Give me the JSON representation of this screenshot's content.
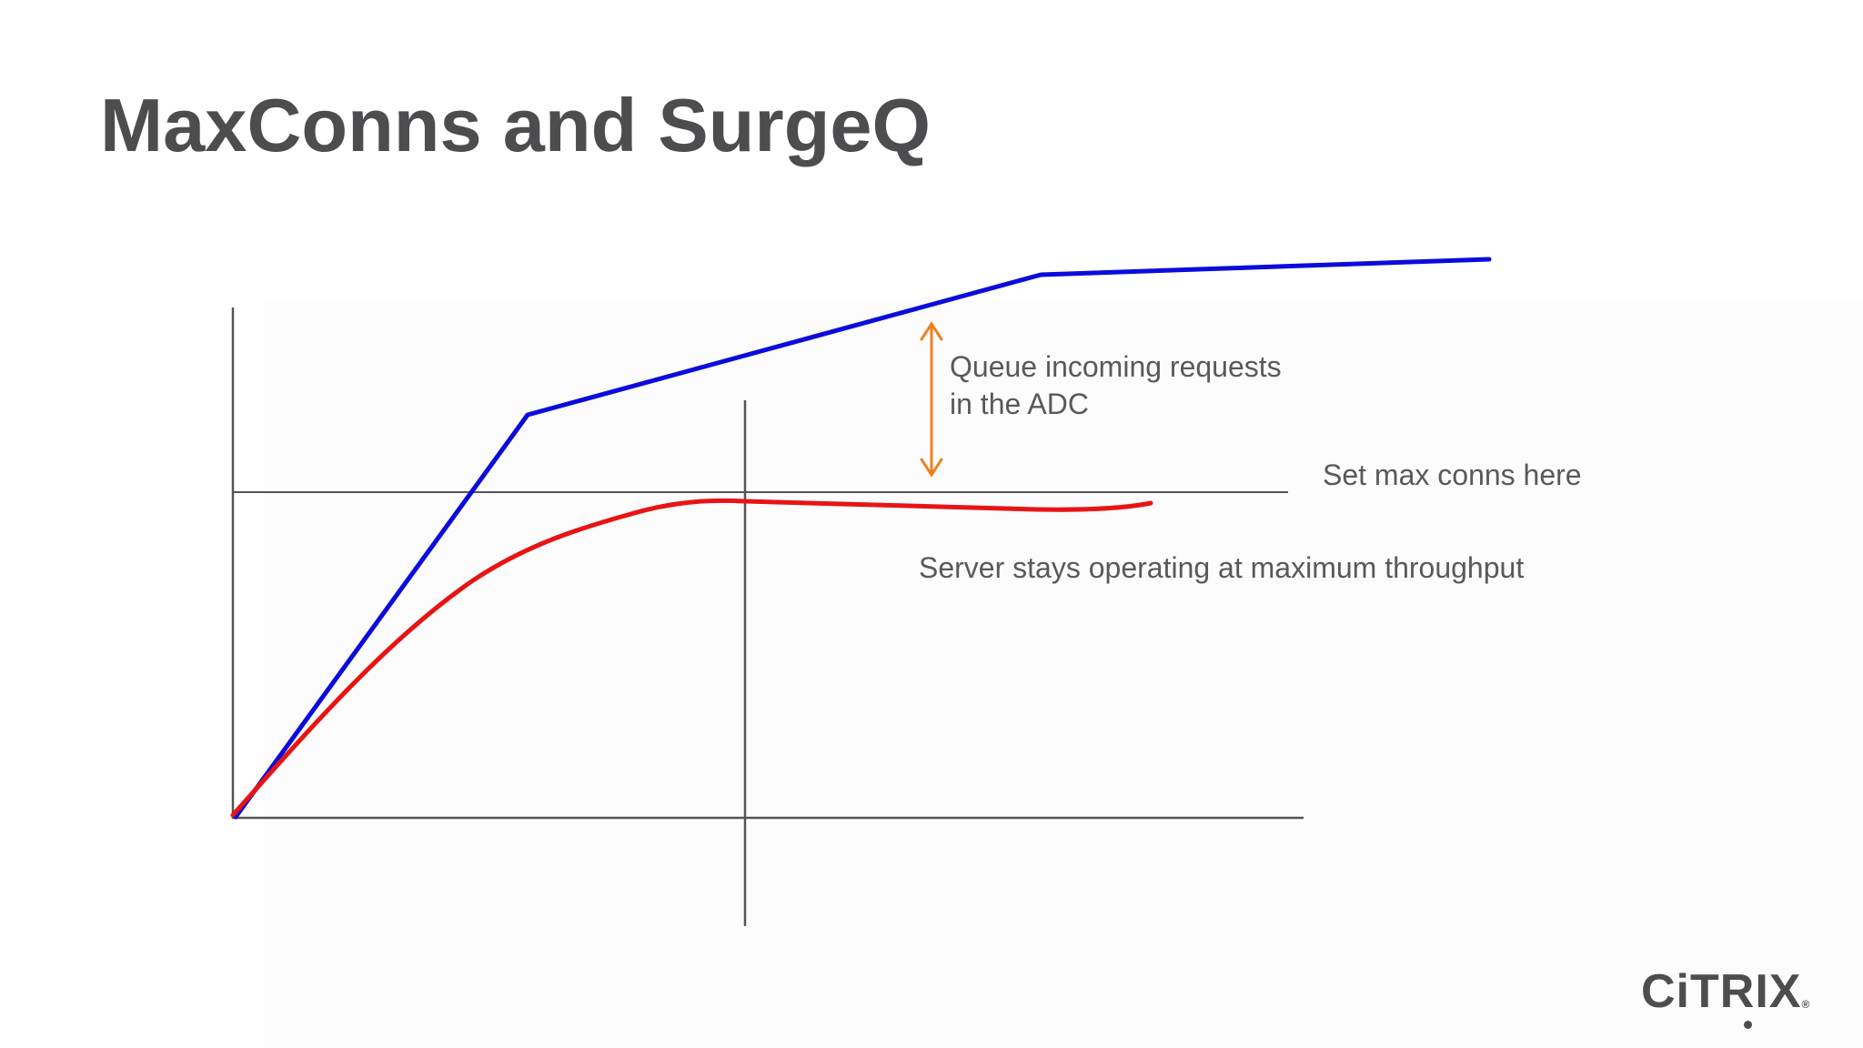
{
  "slide": {
    "title": "MaxConns and SurgeQ"
  },
  "annotations": {
    "queue_line1": "Queue incoming requests",
    "queue_line2": "in the ADC",
    "max_conns": "Set max conns here",
    "server_stays": "Server stays operating at maximum throughput"
  },
  "logo": {
    "text": "CiTRIX",
    "mark": "®"
  },
  "colors": {
    "title_text": "#4d4d4f",
    "axis": "#555555",
    "incoming_curve": "#0b0bdc",
    "server_curve": "#e81414",
    "queue_arrow": "#f07f1e"
  }
}
